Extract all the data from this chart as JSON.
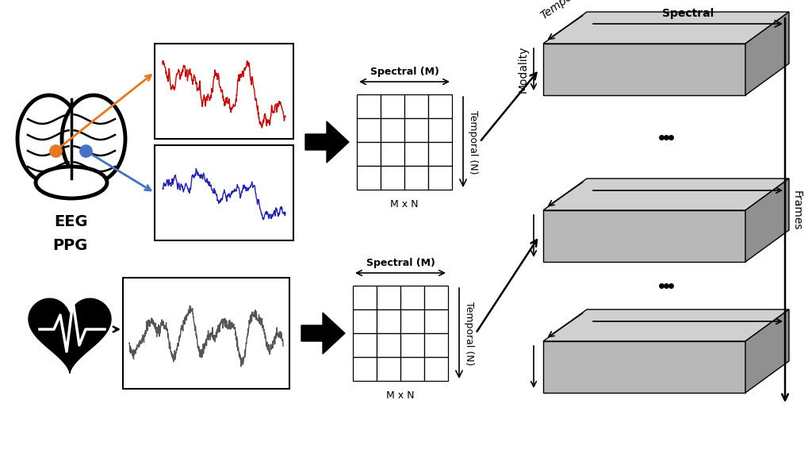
{
  "bg_color": "#ffffff",
  "eeg_label": "EEG",
  "ppg_label": "PPG",
  "spectral_label": "Spectral (M)",
  "temporal_label": "Temporal (N)",
  "mxn_label": "M x N",
  "spectral_label2": "Spectral",
  "temporal_label2": "Temporal",
  "modality_label": "Modality",
  "frames_label": "Frames",
  "red_color": "#cc0000",
  "blue_color": "#2222bb",
  "gray_face": "#b8b8b8",
  "gray_top": "#d0d0d0",
  "gray_right": "#909090",
  "arrow_color": "#111111"
}
